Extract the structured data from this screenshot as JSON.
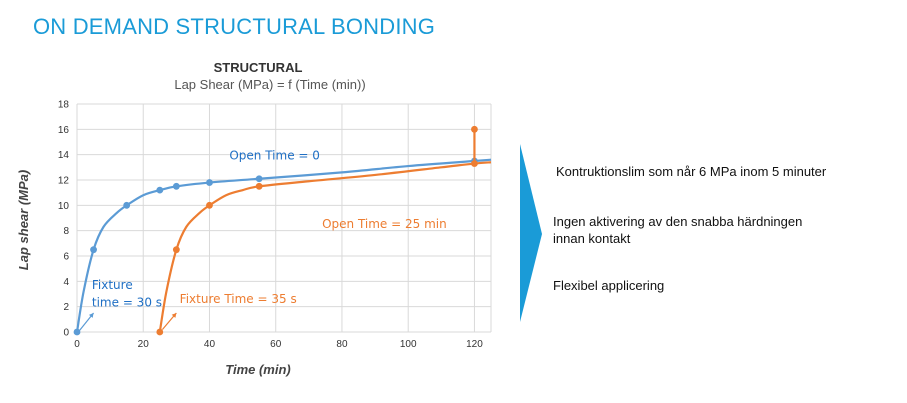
{
  "page": {
    "title": "ON DEMAND STRUCTURAL BONDING"
  },
  "chart_data": {
    "type": "line",
    "title": "STRUCTURAL",
    "subtitle": "Lap Shear (MPa) = f (Time (min))",
    "xlabel": "Time (min)",
    "ylabel": "Lap shear (MPa)",
    "xlim": [
      0,
      125
    ],
    "ylim": [
      0,
      18
    ],
    "xticks": [
      "0",
      "20",
      "40",
      "60",
      "80",
      "100",
      "120"
    ],
    "yticks": [
      "0",
      "2",
      "4",
      "6",
      "8",
      "10",
      "12",
      "14",
      "16",
      "18"
    ],
    "grid": true,
    "series": [
      {
        "color": "#5b9bd5",
        "markers": [
          [
            0,
            0
          ],
          [
            5,
            6.5
          ],
          [
            15,
            10
          ],
          [
            25,
            11.2
          ],
          [
            30,
            11.5
          ],
          [
            40,
            11.8
          ],
          [
            55,
            12.1
          ],
          [
            120,
            13.5
          ]
        ],
        "curve": [
          [
            0,
            0
          ],
          [
            2,
            3.2
          ],
          [
            5,
            6.5
          ],
          [
            8,
            8.3
          ],
          [
            12,
            9.4
          ],
          [
            15,
            10
          ],
          [
            20,
            10.8
          ],
          [
            25,
            11.2
          ],
          [
            30,
            11.5
          ],
          [
            40,
            11.8
          ],
          [
            55,
            12.1
          ],
          [
            80,
            12.6
          ],
          [
            100,
            13.1
          ],
          [
            120,
            13.5
          ],
          [
            125,
            13.6
          ]
        ]
      },
      {
        "color": "#ed7d31",
        "markers": [
          [
            25,
            0
          ],
          [
            30,
            6.5
          ],
          [
            40,
            10
          ],
          [
            55,
            11.5
          ],
          [
            120,
            13.3
          ],
          [
            120,
            16
          ]
        ],
        "curve": [
          [
            25,
            0
          ],
          [
            27,
            3.2
          ],
          [
            30,
            6.5
          ],
          [
            33,
            8.3
          ],
          [
            37,
            9.4
          ],
          [
            40,
            10
          ],
          [
            45,
            10.8
          ],
          [
            50,
            11.2
          ],
          [
            55,
            11.5
          ],
          [
            70,
            11.9
          ],
          [
            90,
            12.4
          ],
          [
            110,
            13.0
          ],
          [
            120,
            13.3
          ],
          [
            125,
            13.4
          ]
        ]
      }
    ],
    "annotations": [
      {
        "text": "Open Time = 0",
        "x": 46,
        "y": 13.6,
        "color": "#1f6fc4"
      },
      {
        "text": "Open Time = 25 min",
        "x": 74,
        "y": 8.2,
        "color": "#ed7d31"
      },
      {
        "text": "Fixture",
        "x": 4.5,
        "y": 3.4,
        "color": "#1f6fc4"
      },
      {
        "text": "time = 30 s",
        "x": 4.5,
        "y": 2.0,
        "color": "#1f6fc4"
      },
      {
        "text": "Fixture Time = 35 s",
        "x": 31,
        "y": 2.3,
        "color": "#ed7d31"
      }
    ]
  },
  "bullets": [
    "Kontruktionslim som når 6 MPa inom 5 minuter",
    "Ingen aktivering av den snabba härdningen",
    "innan kontakt",
    "Flexibel applicering"
  ],
  "colors": {
    "accent": "#1a9bd7",
    "series_open_0": "#5b9bd5",
    "series_open_25": "#ed7d31"
  }
}
